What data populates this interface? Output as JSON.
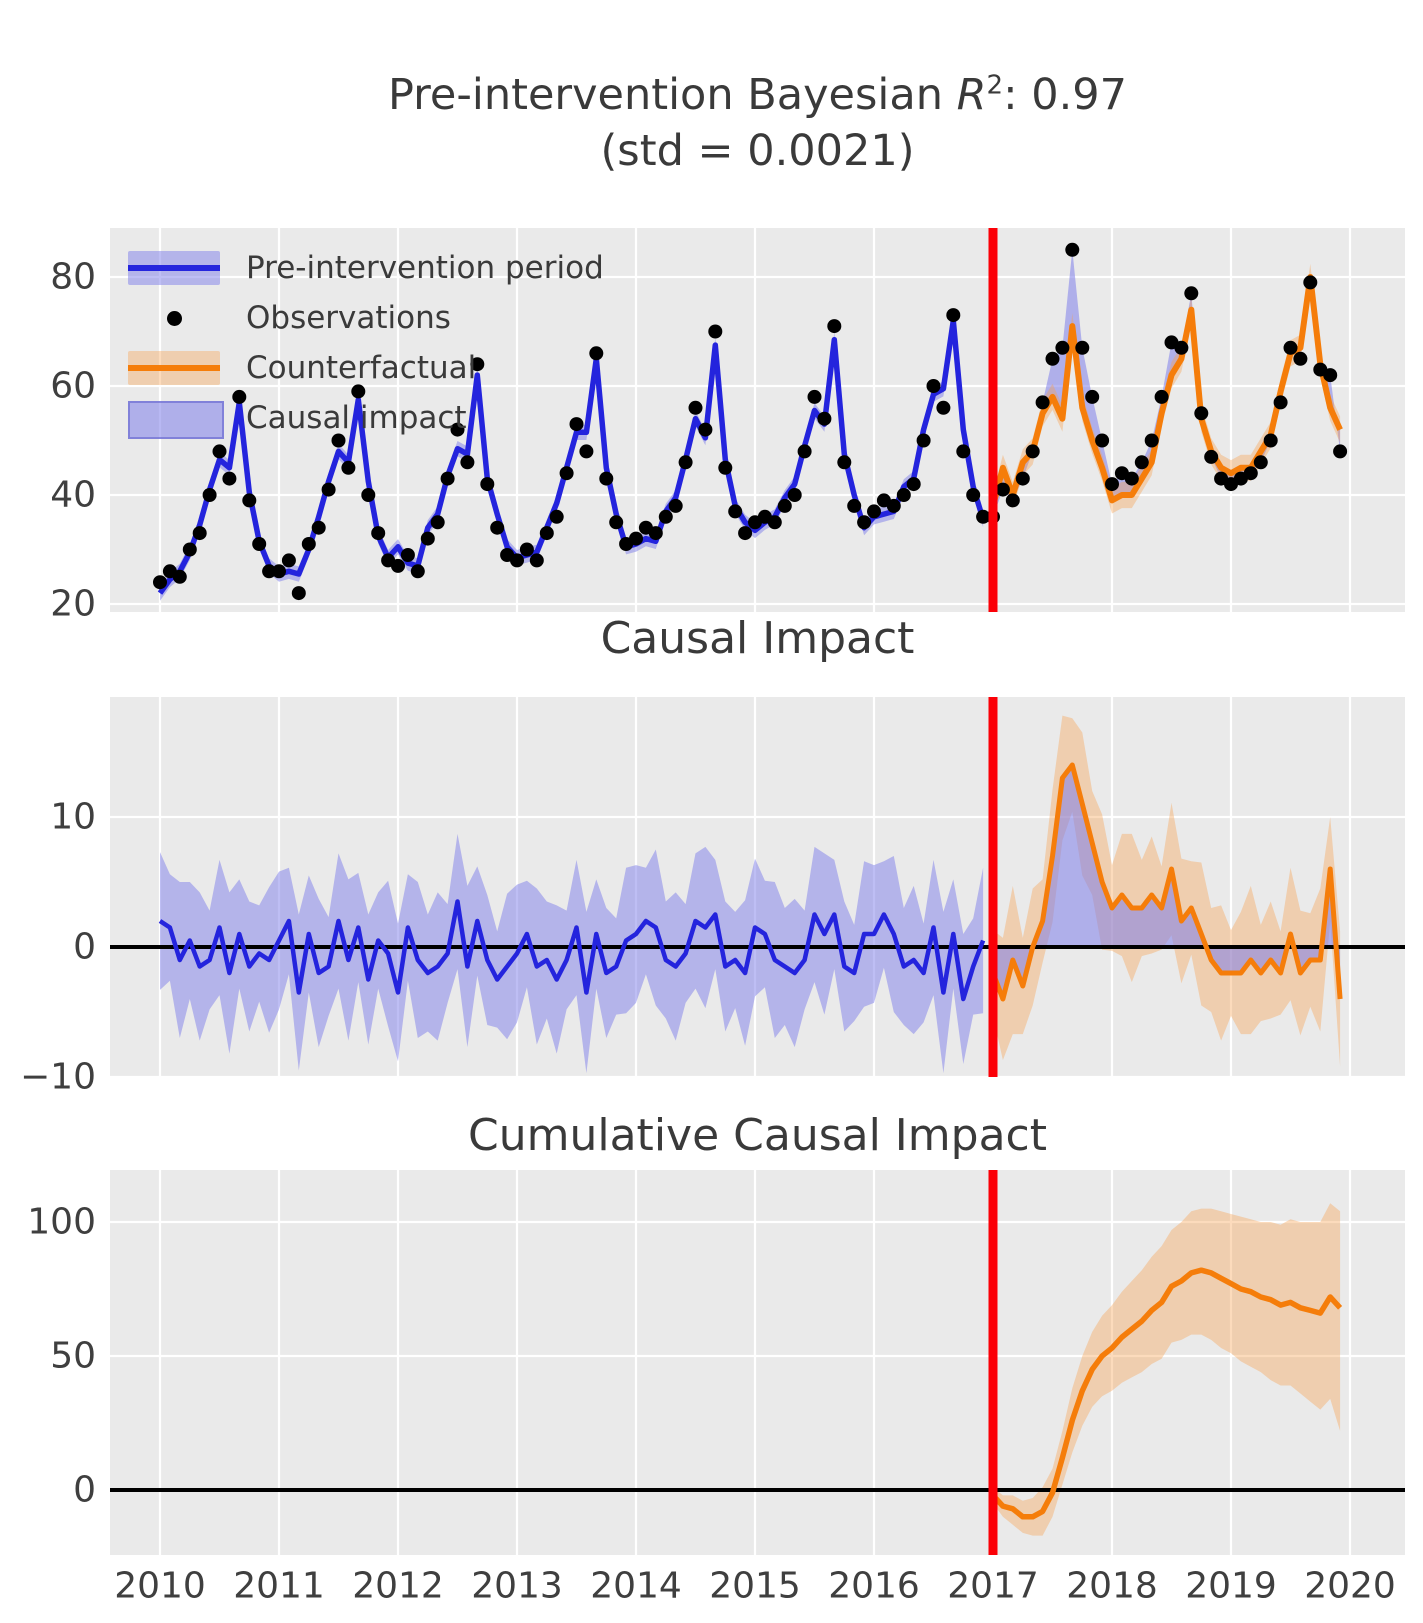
{
  "titles": {
    "main_prefix": "Pre-intervention Bayesian ",
    "main_r": "R",
    "main_sup": "2",
    "main_suffix": ": 0.97",
    "sub": "(std = 0.0021)",
    "panel2": "Causal Impact",
    "panel3": "Cumulative Causal Impact"
  },
  "legend": {
    "items": [
      {
        "label": "Pre-intervention period",
        "type": "line-band"
      },
      {
        "label": "Observations",
        "type": "dot"
      },
      {
        "label": "Counterfactual",
        "type": "line-band-orange"
      },
      {
        "label": "Causal impact",
        "type": "patch"
      }
    ]
  },
  "colors": {
    "blue_line": "#2424dd",
    "blue_band": "rgba(125,125,233,0.50)",
    "causal_fill": "rgba(125,125,233,0.55)",
    "orange_line": "#f57d0a",
    "orange_band": "rgba(246,160,80,0.38)",
    "observation_dot": "#000000",
    "intervention_line": "#fb0007",
    "zero_line": "#000000",
    "panel_bg": "#eaeaea",
    "grid": "#ffffff",
    "tick_text": "#3f3f3f"
  },
  "axes": {
    "x_ticks": [
      {
        "v": 2010,
        "label": "2010"
      },
      {
        "v": 2011,
        "label": "2011"
      },
      {
        "v": 2012,
        "label": "2012"
      },
      {
        "v": 2013,
        "label": "2013"
      },
      {
        "v": 2014,
        "label": "2014"
      },
      {
        "v": 2015,
        "label": "2015"
      },
      {
        "v": 2016,
        "label": "2016"
      },
      {
        "v": 2017,
        "label": "2017"
      },
      {
        "v": 2018,
        "label": "2018"
      },
      {
        "v": 2019,
        "label": "2019"
      },
      {
        "v": 2020,
        "label": "2020"
      }
    ],
    "p1_yticks": [
      {
        "v": 20,
        "label": "20"
      },
      {
        "v": 40,
        "label": "40"
      },
      {
        "v": 60,
        "label": "60"
      },
      {
        "v": 80,
        "label": "80"
      }
    ],
    "p2_yticks": [
      {
        "v": -10,
        "label": "−10"
      },
      {
        "v": 0,
        "label": "0"
      },
      {
        "v": 10,
        "label": "10"
      }
    ],
    "p3_yticks": [
      {
        "v": 0,
        "label": "0"
      },
      {
        "v": 50,
        "label": "50"
      },
      {
        "v": 100,
        "label": "100"
      }
    ]
  },
  "chart_data": {
    "type": "line",
    "x_start": 2010.0,
    "x_step": 0.0833333,
    "n_points": 120,
    "intervention_x": 2017.0,
    "intervention_index": 84,
    "panels": [
      {
        "name": "original",
        "ylim": [
          18.5,
          89.0
        ],
        "note": "observed dots; model line = observed - impact; blue line pre, orange counterfactual post; causal-impact fill between counterfactual and observed after intervention",
        "observed": [
          24,
          26,
          25,
          30,
          33,
          40,
          48,
          43,
          58,
          39,
          31,
          26,
          26,
          28,
          22,
          31,
          34,
          41,
          50,
          45,
          59,
          40,
          33,
          28,
          27,
          29,
          26,
          32,
          35,
          43,
          52,
          46,
          64,
          42,
          34,
          29,
          28,
          30,
          28,
          33,
          36,
          44,
          53,
          48,
          66,
          43,
          35,
          31,
          32,
          34,
          33,
          36,
          38,
          46,
          56,
          52,
          70,
          45,
          37,
          33,
          35,
          36,
          35,
          38,
          40,
          48,
          58,
          54,
          71,
          46,
          38,
          35,
          37,
          39,
          38,
          40,
          42,
          50,
          60,
          56,
          73,
          48,
          40,
          36,
          36,
          41,
          39,
          43,
          48,
          57,
          65,
          67,
          85,
          67,
          58,
          50,
          42,
          44,
          43,
          46,
          50,
          58,
          68,
          67,
          77,
          55,
          47,
          43,
          42,
          43,
          44,
          46,
          50,
          57,
          67,
          65,
          79,
          63,
          62,
          48
        ],
        "band_halfwidth_pre": 1.4,
        "band_halfwidth_post": 2.4
      },
      {
        "name": "pointwise",
        "ylim": [
          -10.0,
          19.2
        ],
        "impact": [
          2,
          1.5,
          -1,
          0.5,
          -1.5,
          -1,
          1.5,
          -2,
          1,
          -1.5,
          -0.5,
          -1,
          0.5,
          2,
          -3.5,
          1,
          -2,
          -1.5,
          2,
          -1,
          1.5,
          -2.5,
          0.5,
          -0.5,
          -3.5,
          1.5,
          -1,
          -2,
          -1.5,
          -0.5,
          3.5,
          -1.5,
          2,
          -1,
          -2.5,
          -1.5,
          -0.5,
          1,
          -1.5,
          -1,
          -2.5,
          -1,
          1.5,
          -3.5,
          1,
          -2,
          -1.5,
          0.5,
          1,
          2,
          1.5,
          -1,
          -1.5,
          -0.5,
          2,
          1.5,
          2.5,
          -1.5,
          -1,
          -2,
          1.5,
          1,
          -1,
          -1.5,
          -2,
          -1,
          2.5,
          1,
          2.5,
          -1.5,
          -2,
          1,
          1,
          2.5,
          1,
          -1.5,
          -1,
          -2,
          1.5,
          -3.5,
          1,
          -4,
          -1.5,
          0.5,
          -2,
          -4,
          -1,
          -3,
          0,
          2,
          7,
          13,
          14,
          11,
          8,
          5,
          3,
          4,
          3,
          3,
          4,
          3,
          6,
          2,
          3,
          1,
          -1,
          -2,
          -2,
          -2,
          -1,
          -2,
          -1,
          -2,
          1,
          -2,
          -1,
          -1,
          6,
          -4
        ],
        "band_base_pre": 4.8,
        "band_base_post": 4.3,
        "band_jitter": [
          0.5,
          -0.7,
          1.2,
          -0.3,
          0.9,
          -1.0,
          0.4,
          1.4,
          -0.6,
          0.2,
          -1.1,
          0.8
        ]
      },
      {
        "name": "cumulative",
        "ylim": [
          -24.3,
          119.4
        ],
        "start_index": 84,
        "values": [
          -2,
          -6,
          -7,
          -10,
          -10,
          -8,
          -1,
          12,
          26,
          37,
          45,
          50,
          53,
          57,
          60,
          63,
          67,
          70,
          76,
          78,
          81,
          82,
          81,
          79,
          77,
          75,
          74,
          72,
          71,
          69,
          70,
          68,
          67,
          66,
          72,
          68
        ],
        "hi": [
          1,
          -2,
          -2,
          -4,
          -3,
          1,
          8,
          22,
          38,
          50,
          59,
          65,
          69,
          74,
          78,
          82,
          87,
          91,
          97,
          100,
          104,
          105,
          105,
          104,
          103,
          102,
          101,
          100,
          100,
          99,
          101,
          100,
          100,
          100,
          107,
          104
        ],
        "lo": [
          -5,
          -10,
          -13,
          -16,
          -17,
          -17,
          -10,
          2,
          14,
          24,
          31,
          35,
          37,
          40,
          42,
          44,
          47,
          49,
          55,
          56,
          58,
          58,
          56,
          53,
          51,
          48,
          46,
          44,
          41,
          39,
          39,
          36,
          33,
          30,
          34,
          22
        ]
      }
    ]
  }
}
